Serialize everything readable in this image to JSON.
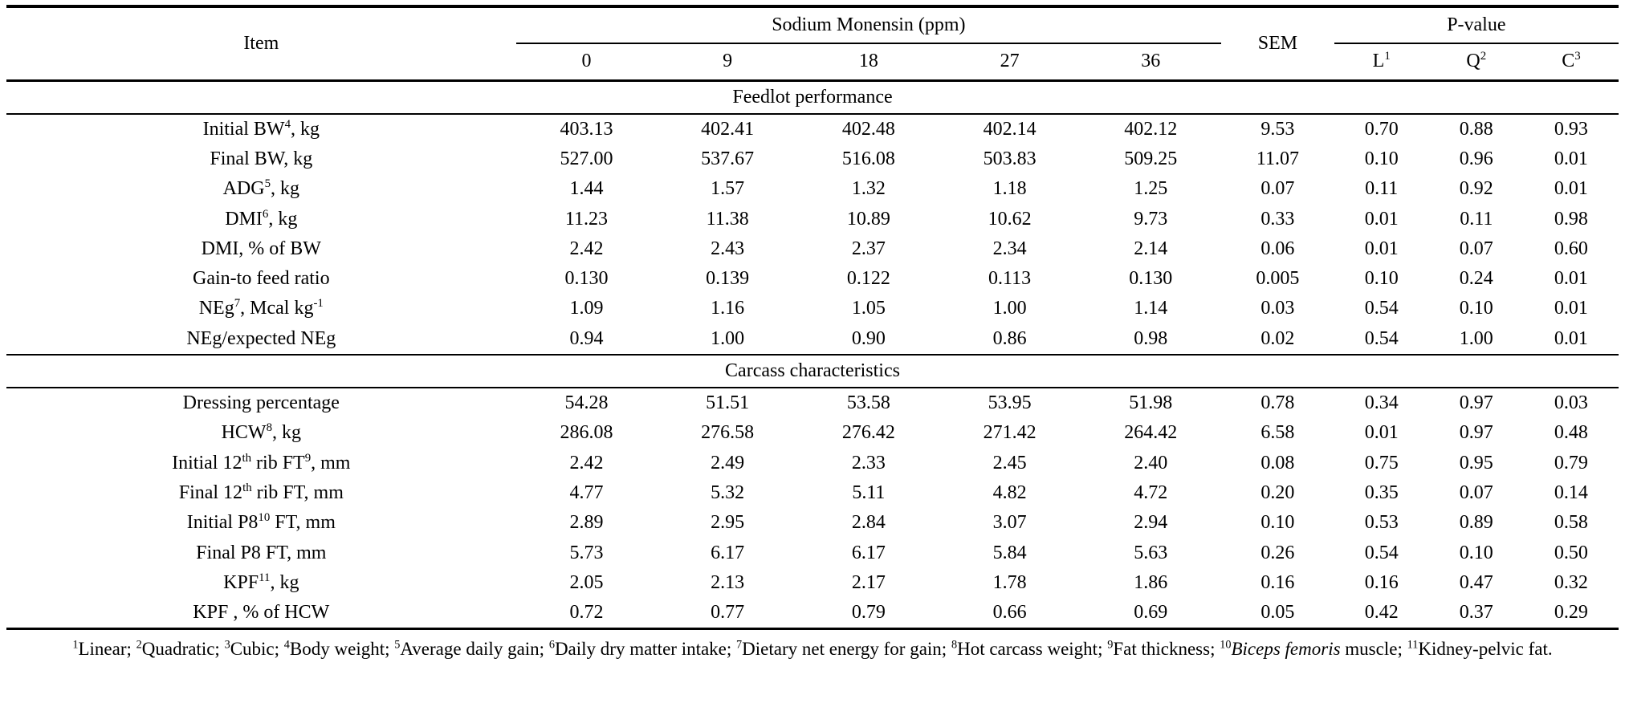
{
  "table": {
    "item_header": "Item",
    "group1_header": "Sodium Monensin (ppm)",
    "sem_header": "SEM",
    "group2_header": "P-value",
    "dose_cols": [
      "0",
      "9",
      "18",
      "27",
      "36"
    ],
    "pvalue_cols": [
      {
        "base": "L",
        "sup": "1"
      },
      {
        "base": "Q",
        "sup": "2"
      },
      {
        "base": "C",
        "sup": "3"
      }
    ],
    "sections": [
      {
        "title": "Feedlot performance",
        "rows": [
          {
            "label": [
              {
                "t": "Initial BW"
              },
              {
                "sup": "4"
              },
              {
                "t": ", kg"
              }
            ],
            "values": [
              "403.13",
              "402.41",
              "402.48",
              "402.14",
              "402.12",
              "9.53",
              "0.70",
              "0.88",
              "0.93"
            ]
          },
          {
            "label": [
              {
                "t": "Final BW, kg"
              }
            ],
            "values": [
              "527.00",
              "537.67",
              "516.08",
              "503.83",
              "509.25",
              "11.07",
              "0.10",
              "0.96",
              "0.01"
            ]
          },
          {
            "label": [
              {
                "t": "ADG"
              },
              {
                "sup": "5"
              },
              {
                "t": ", kg"
              }
            ],
            "values": [
              "1.44",
              "1.57",
              "1.32",
              "1.18",
              "1.25",
              "0.07",
              "0.11",
              "0.92",
              "0.01"
            ]
          },
          {
            "label": [
              {
                "t": "DMI"
              },
              {
                "sup": "6"
              },
              {
                "t": ", kg"
              }
            ],
            "values": [
              "11.23",
              "11.38",
              "10.89",
              "10.62",
              "9.73",
              "0.33",
              "0.01",
              "0.11",
              "0.98"
            ]
          },
          {
            "label": [
              {
                "t": "DMI, % of BW"
              }
            ],
            "values": [
              "2.42",
              "2.43",
              "2.37",
              "2.34",
              "2.14",
              "0.06",
              "0.01",
              "0.07",
              "0.60"
            ]
          },
          {
            "label": [
              {
                "t": "Gain-to feed ratio"
              }
            ],
            "values": [
              "0.130",
              "0.139",
              "0.122",
              "0.113",
              "0.130",
              "0.005",
              "0.10",
              "0.24",
              "0.01"
            ]
          },
          {
            "label": [
              {
                "t": "NEg"
              },
              {
                "sup": "7"
              },
              {
                "t": ", Mcal kg"
              },
              {
                "sup": "-1"
              }
            ],
            "values": [
              "1.09",
              "1.16",
              "1.05",
              "1.00",
              "1.14",
              "0.03",
              "0.54",
              "0.10",
              "0.01"
            ]
          },
          {
            "label": [
              {
                "t": "NEg/expected NEg"
              }
            ],
            "values": [
              "0.94",
              "1.00",
              "0.90",
              "0.86",
              "0.98",
              "0.02",
              "0.54",
              "1.00",
              "0.01"
            ]
          }
        ]
      },
      {
        "title": "Carcass characteristics",
        "rows": [
          {
            "label": [
              {
                "t": "Dressing percentage"
              }
            ],
            "values": [
              "54.28",
              "51.51",
              "53.58",
              "53.95",
              "51.98",
              "0.78",
              "0.34",
              "0.97",
              "0.03"
            ]
          },
          {
            "label": [
              {
                "t": "HCW"
              },
              {
                "sup": "8"
              },
              {
                "t": ", kg"
              }
            ],
            "values": [
              "286.08",
              "276.58",
              "276.42",
              "271.42",
              "264.42",
              "6.58",
              "0.01",
              "0.97",
              "0.48"
            ]
          },
          {
            "label": [
              {
                "t": "Initial 12"
              },
              {
                "sup": "th"
              },
              {
                "t": " rib FT"
              },
              {
                "sup": "9"
              },
              {
                "t": ", mm"
              }
            ],
            "values": [
              "2.42",
              "2.49",
              "2.33",
              "2.45",
              "2.40",
              "0.08",
              "0.75",
              "0.95",
              "0.79"
            ]
          },
          {
            "label": [
              {
                "t": "Final 12"
              },
              {
                "sup": "th"
              },
              {
                "t": " rib FT, mm"
              }
            ],
            "values": [
              "4.77",
              "5.32",
              "5.11",
              "4.82",
              "4.72",
              "0.20",
              "0.35",
              "0.07",
              "0.14"
            ]
          },
          {
            "label": [
              {
                "t": "Initial P8"
              },
              {
                "sup": "10"
              },
              {
                "t": " FT, mm"
              }
            ],
            "values": [
              "2.89",
              "2.95",
              "2.84",
              "3.07",
              "2.94",
              "0.10",
              "0.53",
              "0.89",
              "0.58"
            ]
          },
          {
            "label": [
              {
                "t": "Final P8 FT, mm"
              }
            ],
            "values": [
              "5.73",
              "6.17",
              "6.17",
              "5.84",
              "5.63",
              "0.26",
              "0.54",
              "0.10",
              "0.50"
            ]
          },
          {
            "label": [
              {
                "t": "KPF"
              },
              {
                "sup": "11"
              },
              {
                "t": ", kg"
              }
            ],
            "values": [
              "2.05",
              "2.13",
              "2.17",
              "1.78",
              "1.86",
              "0.16",
              "0.16",
              "0.47",
              "0.32"
            ]
          },
          {
            "label": [
              {
                "t": "KPF , % of HCW"
              }
            ],
            "values": [
              "0.72",
              "0.77",
              "0.79",
              "0.66",
              "0.69",
              "0.05",
              "0.42",
              "0.37",
              "0.29"
            ]
          }
        ]
      }
    ]
  },
  "footnotes": [
    {
      "sup": "1"
    },
    {
      "t": "Linear; "
    },
    {
      "sup": "2"
    },
    {
      "t": "Quadratic; "
    },
    {
      "sup": "3"
    },
    {
      "t": "Cubic; "
    },
    {
      "sup": "4"
    },
    {
      "t": "Body weight; "
    },
    {
      "sup": "5"
    },
    {
      "t": "Average daily gain; "
    },
    {
      "sup": "6"
    },
    {
      "t": "Daily dry matter intake; "
    },
    {
      "sup": "7"
    },
    {
      "t": "Dietary net energy for gain; "
    },
    {
      "sup": "8"
    },
    {
      "t": "Hot carcass weight; "
    },
    {
      "sup": "9"
    },
    {
      "t": "Fat thickness; "
    },
    {
      "sup": "10"
    },
    {
      "i": "Biceps femoris"
    },
    {
      "t": " muscle; "
    },
    {
      "sup": "11"
    },
    {
      "t": "Kidney-pelvic fat."
    }
  ]
}
